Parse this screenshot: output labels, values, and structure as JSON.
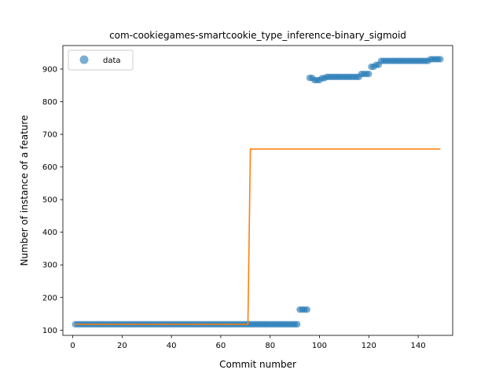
{
  "chart_data": {
    "type": "scatter",
    "title": "com-cookiegames-smartcookie_type_inference-binary_sigmoid",
    "xlabel": "Commit number",
    "ylabel": "Number of instance of a feature",
    "xlim": [
      -4,
      154
    ],
    "ylim": [
      84,
      972
    ],
    "xticks": [
      0,
      20,
      40,
      60,
      80,
      100,
      120,
      140
    ],
    "yticks": [
      100,
      200,
      300,
      400,
      500,
      600,
      700,
      800,
      900
    ],
    "grid": false,
    "legend": {
      "placement": "top-left",
      "entries": [
        "data"
      ]
    },
    "colors": {
      "data": "#1f77b4",
      "fit": "#ff7f0e"
    },
    "series": [
      {
        "name": "data",
        "kind": "scatter",
        "segments": [
          {
            "x_start": 1,
            "x_end": 91,
            "y": 118
          },
          {
            "x_start": 92,
            "x_end": 95,
            "y": 163
          },
          {
            "x_start": 96,
            "x_end": 97,
            "y": 873
          },
          {
            "x_start": 98,
            "x_end": 100,
            "y": 866
          },
          {
            "x_start": 101,
            "x_end": 102,
            "y": 872
          },
          {
            "x_start": 103,
            "x_end": 116,
            "y": 876
          },
          {
            "x_start": 117,
            "x_end": 120,
            "y": 885
          },
          {
            "x_start": 121,
            "x_end": 122,
            "y": 907
          },
          {
            "x_start": 123,
            "x_end": 124,
            "y": 913
          },
          {
            "x_start": 125,
            "x_end": 144,
            "y": 925
          },
          {
            "x_start": 145,
            "x_end": 149,
            "y": 930
          }
        ]
      },
      {
        "kind": "line",
        "x": [
          1,
          71,
          72,
          149
        ],
        "y": [
          118,
          118,
          655,
          655
        ]
      }
    ]
  }
}
